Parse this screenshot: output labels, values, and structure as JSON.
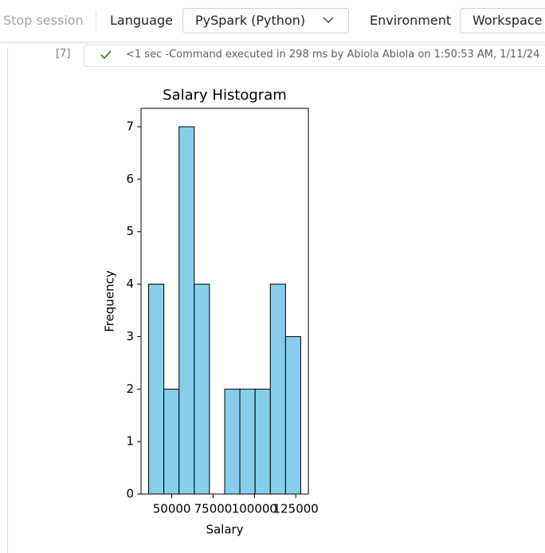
{
  "toolbar": {
    "stop_session": "Stop session",
    "language_label": "Language",
    "language_value": "PySpark (Python)",
    "environment_label": "Environment",
    "environment_value": "Workspace"
  },
  "cell": {
    "index": "[7]",
    "status": "<1 sec -Command executed in 298 ms by Abiola Abiola on 1:50:53 AM, 1/11/24"
  },
  "chart_data": {
    "type": "histogram",
    "title": "Salary Histogram",
    "x_label": "Salary",
    "y_label": "Frequency",
    "bins": [
      36000,
      45200,
      54400,
      63600,
      72800,
      82000,
      91200,
      100400,
      109600,
      118800,
      128000
    ],
    "values": [
      4,
      2,
      7,
      4,
      0,
      2,
      2,
      2,
      4,
      3
    ],
    "color": "#87ceeb",
    "edgecolor": "#000000",
    "xlim": [
      31400,
      132600
    ],
    "xticks": [
      50000,
      75000,
      100000,
      125000
    ],
    "ylim": [
      0,
      7.35
    ],
    "yticks": [
      0,
      1,
      2,
      3,
      4,
      5,
      6,
      7
    ]
  }
}
